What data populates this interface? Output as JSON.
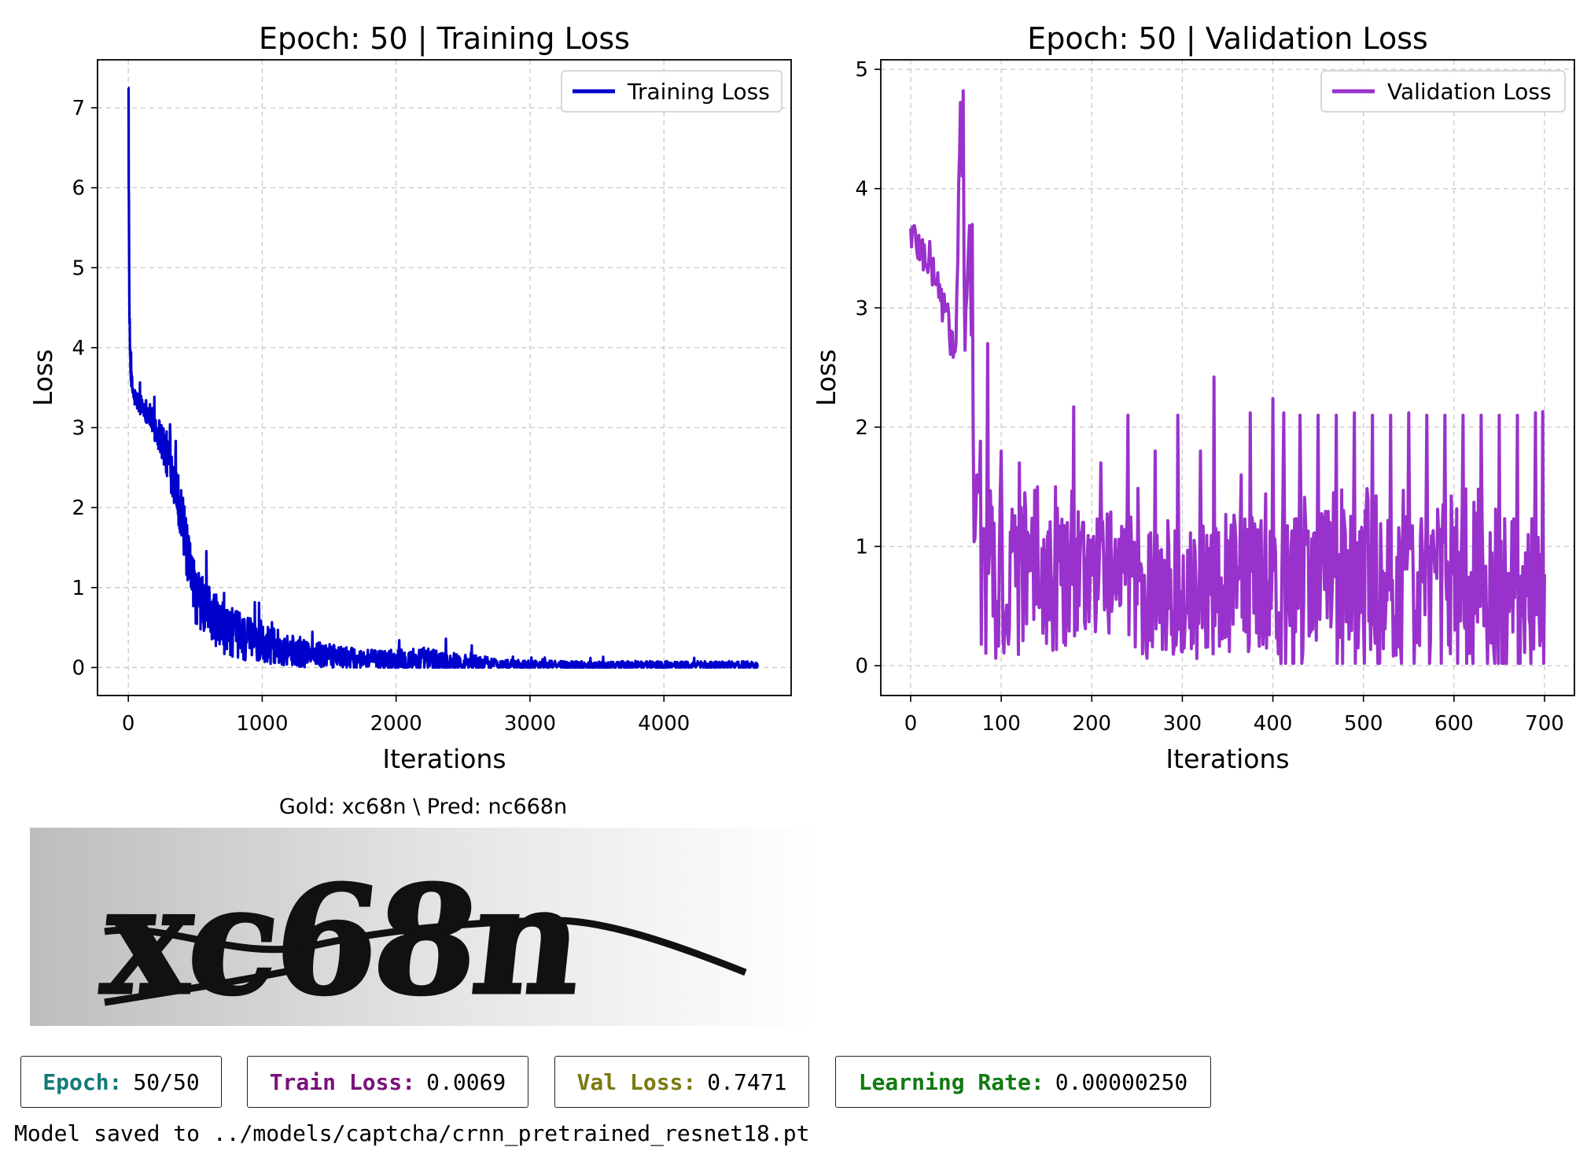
{
  "chart_data": [
    {
      "type": "line",
      "title": "Epoch: 50 | Training Loss",
      "xlabel": "Iterations",
      "ylabel": "Loss",
      "xlim": [
        -230,
        4950
      ],
      "ylim": [
        -0.35,
        7.6
      ],
      "xticks": [
        0,
        1000,
        2000,
        3000,
        4000
      ],
      "yticks": [
        0,
        1,
        2,
        3,
        4,
        5,
        6,
        7
      ],
      "grid": true,
      "legend": "top-right",
      "series": [
        {
          "name": "Training Loss",
          "color": "#0000cd",
          "x": [
            0,
            5,
            10,
            20,
            40,
            80,
            120,
            160,
            200,
            250,
            300,
            350,
            400,
            450,
            500,
            600,
            700,
            800,
            900,
            1000,
            1200,
            1400,
            1600,
            1800,
            2000,
            2200,
            2400,
            2600,
            2800,
            3000,
            3400,
            3800,
            4200,
            4700
          ],
          "y": [
            7.25,
            5.2,
            4.2,
            3.6,
            3.4,
            3.3,
            3.25,
            3.15,
            3.0,
            2.85,
            2.6,
            2.3,
            1.9,
            1.3,
            0.9,
            0.7,
            0.5,
            0.42,
            0.35,
            0.3,
            0.22,
            0.16,
            0.12,
            0.1,
            0.09,
            0.1,
            0.07,
            0.06,
            0.04,
            0.04,
            0.03,
            0.03,
            0.03,
            0.03
          ],
          "noise": [
            0.05,
            0.2,
            0.2,
            0.15,
            0.12,
            0.12,
            0.15,
            0.15,
            0.2,
            0.25,
            0.3,
            0.3,
            0.35,
            0.35,
            0.35,
            0.35,
            0.32,
            0.3,
            0.28,
            0.25,
            0.2,
            0.17,
            0.14,
            0.12,
            0.14,
            0.16,
            0.12,
            0.1,
            0.06,
            0.05,
            0.05,
            0.05,
            0.05,
            0.05
          ]
        }
      ]
    },
    {
      "type": "line",
      "title": "Epoch: 50 | Validation Loss",
      "xlabel": "Iterations",
      "ylabel": "Loss",
      "xlim": [
        -33,
        733
      ],
      "ylim": [
        -0.25,
        5.08
      ],
      "xticks": [
        0,
        100,
        200,
        300,
        400,
        500,
        600,
        700
      ],
      "yticks": [
        0,
        1,
        2,
        3,
        4,
        5
      ],
      "grid": true,
      "legend": "top-right",
      "series": [
        {
          "name": "Validation Loss",
          "color": "#9932cc",
          "x": [
            0,
            10,
            20,
            30,
            40,
            50,
            55,
            60,
            65,
            70,
            75,
            80,
            90,
            100,
            150,
            200,
            250,
            300,
            350,
            400,
            450,
            500,
            550,
            600,
            650,
            700
          ],
          "y": [
            3.65,
            3.5,
            3.4,
            3.2,
            2.9,
            2.6,
            4.8,
            2.8,
            3.6,
            1.5,
            1.3,
            1.4,
            0.9,
            0.8,
            0.8,
            0.75,
            0.7,
            0.65,
            0.75,
            0.7,
            0.7,
            0.7,
            0.7,
            0.7,
            0.7,
            0.7
          ],
          "spikes": [
            [
              58,
              4.82
            ],
            [
              68,
              3.7
            ],
            [
              85,
              2.7
            ],
            [
              100,
              1.8
            ],
            [
              120,
              1.7
            ],
            [
              140,
              1.5
            ],
            [
              160,
              1.5
            ],
            [
              180,
              2.17
            ],
            [
              210,
              1.7
            ],
            [
              240,
              2.1
            ],
            [
              270,
              1.8
            ],
            [
              295,
              2.1
            ],
            [
              320,
              1.8
            ],
            [
              335,
              2.42
            ],
            [
              365,
              1.6
            ],
            [
              375,
              2.12
            ],
            [
              400,
              2.24
            ],
            [
              412,
              2.12
            ],
            [
              430,
              2.1
            ],
            [
              450,
              2.1
            ],
            [
              470,
              2.1
            ],
            [
              490,
              2.12
            ],
            [
              510,
              2.1
            ],
            [
              530,
              2.1
            ],
            [
              550,
              2.12
            ],
            [
              570,
              2.1
            ],
            [
              590,
              2.1
            ],
            [
              610,
              2.1
            ],
            [
              630,
              2.1
            ],
            [
              650,
              2.1
            ],
            [
              670,
              2.1
            ],
            [
              690,
              2.12
            ],
            [
              698,
              2.13
            ]
          ]
        }
      ]
    }
  ],
  "sample": {
    "title": "Gold: xc68n \\ Pred: nc668n",
    "captcha_text": "xc68n"
  },
  "status": {
    "epoch": {
      "label": "Epoch:",
      "value": "50/50",
      "color": "#117a7a"
    },
    "train_loss": {
      "label": "Train Loss:",
      "value": "0.0069",
      "color": "#7a117a"
    },
    "val_loss": {
      "label": "Val Loss:",
      "value": "0.7471",
      "color": "#7a7a11"
    },
    "learning_rate": {
      "label": "Learning Rate:",
      "value": "0.00000250",
      "color": "#117a11"
    }
  },
  "saved_message": "Model saved to ../models/captcha/crnn_pretrained_resnet18.pt"
}
